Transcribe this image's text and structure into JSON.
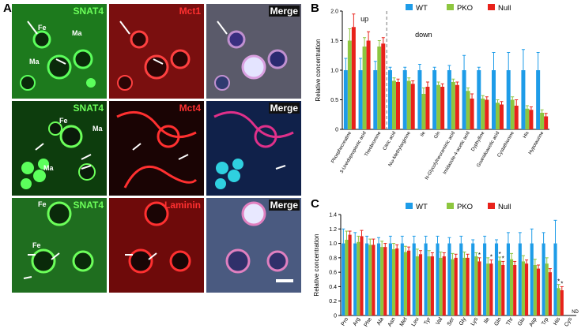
{
  "panels": {
    "A": "A",
    "B": "B",
    "C": "C"
  },
  "micrograph": {
    "rows": [
      {
        "labels": [
          "SNAT4",
          "Mct1",
          "Merge"
        ],
        "tissue": [
          {
            "text": "Fe"
          },
          {
            "text": "Ma"
          },
          {
            "text": "Ma"
          }
        ]
      },
      {
        "labels": [
          "SNAT4",
          "Mct4",
          "Merge"
        ],
        "tissue": [
          {
            "text": "Fe"
          },
          {
            "text": "Ma"
          },
          {
            "text": "Ma"
          }
        ]
      },
      {
        "labels": [
          "SNAT4",
          "Laminin",
          "Merge"
        ],
        "tissue": [
          {
            "text": "Fe"
          },
          {
            "text": "Fe"
          }
        ]
      }
    ],
    "colors": {
      "green": "#6cff5a",
      "red": "#ff3030"
    }
  },
  "legend_labels": [
    "WT",
    "PKO",
    "Null"
  ],
  "colors": {
    "WT": "#1e9ce8",
    "PKO": "#8dc63f",
    "Null": "#e8221b",
    "divider": "#777777"
  },
  "chart_data": [
    {
      "panel": "B",
      "type": "bar",
      "ylabel": "Relative concentration",
      "ylim": [
        0,
        2
      ],
      "yticks": [
        "0",
        "0.5",
        "1.0",
        "1.5",
        "2.0"
      ],
      "annotations": [
        "up",
        "down"
      ],
      "categories": [
        "Phosphocreatine",
        "3-Ureidopropionic acid",
        "Theobromine",
        "Citric acid",
        "Nω-Methylarginine",
        "Ile",
        "Gln",
        "N-Glycolylneuraminic acid",
        "Imidazole-4-acetic acid",
        "Dyphylline",
        "Guanidoacetic acid",
        "Cystathionine",
        "His",
        "Hypotaurine"
      ],
      "series": [
        {
          "name": "WT",
          "values": [
            1.0,
            1.0,
            1.0,
            1.0,
            1.0,
            1.0,
            1.0,
            1.0,
            1.0,
            1.0,
            1.0,
            1.0,
            1.0,
            1.0
          ],
          "errors": [
            0.2,
            0.2,
            0.15,
            0.05,
            0.05,
            0.1,
            0.05,
            0.08,
            0.25,
            0.05,
            0.3,
            0.3,
            0.35,
            0.3
          ]
        },
        {
          "name": "PKO",
          "values": [
            1.5,
            1.4,
            1.4,
            0.82,
            0.82,
            0.6,
            0.75,
            0.8,
            0.65,
            0.52,
            0.45,
            0.5,
            0.35,
            0.28
          ],
          "errors": [
            0.2,
            0.15,
            0.1,
            0.05,
            0.05,
            0.1,
            0.05,
            0.05,
            0.05,
            0.05,
            0.05,
            0.05,
            0.05,
            0.05
          ]
        },
        {
          "name": "Null",
          "values": [
            1.73,
            1.5,
            1.45,
            0.8,
            0.77,
            0.72,
            0.72,
            0.75,
            0.52,
            0.5,
            0.42,
            0.4,
            0.33,
            0.22
          ],
          "errors": [
            0.22,
            0.15,
            0.1,
            0.05,
            0.05,
            0.08,
            0.05,
            0.05,
            0.08,
            0.05,
            0.05,
            0.1,
            0.05,
            0.05
          ]
        }
      ]
    },
    {
      "panel": "C",
      "type": "bar",
      "ylabel": "Relative concentration",
      "ylim": [
        0,
        1.4
      ],
      "yticks": [
        "0",
        "0.2",
        "0.4",
        "0.6",
        "0.8",
        "1.0",
        "1.2",
        "1.4"
      ],
      "categories": [
        "Pro",
        "Arg",
        "Phe",
        "Ala",
        "Asn",
        "Met",
        "Leu",
        "Tyr",
        "Val",
        "Ser",
        "Gly",
        "Lys",
        "Ile",
        "Gln",
        "Thr",
        "Glu",
        "Asp",
        "Trp",
        "His",
        "Cys"
      ],
      "annotations": [
        "ND"
      ],
      "significant_mark": "*",
      "series": [
        {
          "name": "WT",
          "values": [
            1.0,
            1.0,
            1.0,
            1.0,
            1.0,
            1.0,
            1.0,
            1.0,
            1.0,
            1.0,
            1.0,
            1.0,
            1.0,
            1.0,
            1.0,
            1.0,
            1.0,
            1.0,
            1.0,
            null
          ],
          "errors": [
            0.2,
            0.15,
            0.1,
            0.08,
            0.1,
            0.1,
            0.1,
            0.1,
            0.1,
            0.08,
            0.1,
            0.05,
            0.1,
            0.05,
            0.15,
            0.15,
            0.2,
            0.15,
            0.32,
            null
          ]
        },
        {
          "name": "PKO",
          "values": [
            1.05,
            1.02,
            0.98,
            0.95,
            0.92,
            0.88,
            0.82,
            0.82,
            0.8,
            0.78,
            0.8,
            0.82,
            0.72,
            0.76,
            0.78,
            0.75,
            0.7,
            0.72,
            0.38,
            null
          ],
          "errors": [
            0.12,
            0.08,
            0.08,
            0.08,
            0.08,
            0.08,
            0.1,
            0.08,
            0.08,
            0.08,
            0.08,
            0.05,
            0.08,
            0.05,
            0.08,
            0.08,
            0.08,
            0.08,
            0.05,
            null
          ]
        },
        {
          "name": "Null",
          "values": [
            1.12,
            1.1,
            0.98,
            0.95,
            0.93,
            0.9,
            0.85,
            0.82,
            0.82,
            0.8,
            0.8,
            0.75,
            0.72,
            0.7,
            0.7,
            0.72,
            0.65,
            0.6,
            0.35,
            null
          ],
          "errors": [
            0.05,
            0.08,
            0.08,
            0.05,
            0.05,
            0.05,
            0.05,
            0.05,
            0.05,
            0.05,
            0.05,
            0.05,
            0.05,
            0.05,
            0.05,
            0.05,
            0.05,
            0.05,
            0.05,
            null
          ]
        }
      ],
      "stars": [
        {
          "category": "Lys",
          "series": "Null"
        },
        {
          "category": "Ile",
          "series": "Null"
        },
        {
          "category": "Gln",
          "series": "PKO"
        },
        {
          "category": "Gln",
          "series": "Null"
        },
        {
          "category": "His",
          "series": "PKO"
        },
        {
          "category": "His",
          "series": "Null"
        }
      ]
    }
  ]
}
